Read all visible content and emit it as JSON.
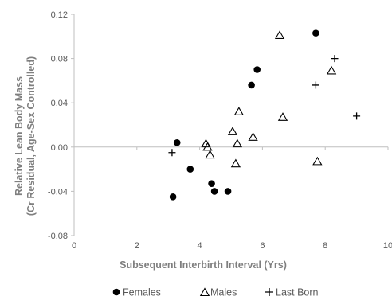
{
  "chart_data": {
    "type": "scatter",
    "xlabel": "Subsequent Interbirth Interval (Yrs)",
    "ylabel_lines": [
      "Relative Lean Body Mass",
      "(Cr Residual, Age-Sex Controlled)"
    ],
    "xlim": [
      0,
      10
    ],
    "ylim": [
      -0.08,
      0.12
    ],
    "x_ticks": [
      0,
      2,
      4,
      6,
      8,
      10
    ],
    "x_tick_labels": [
      "0",
      "2",
      "4",
      "6",
      "8",
      "10"
    ],
    "y_ticks": [
      -0.08,
      -0.04,
      0.0,
      0.04,
      0.08,
      0.12
    ],
    "y_tick_labels": [
      "-0.08",
      "-0.04",
      "0.00",
      "0.04",
      "0.08",
      "0.12"
    ],
    "grid": false,
    "legend_position": "bottom",
    "series": [
      {
        "name": "Females",
        "marker": "filled-circle",
        "color": "#000000",
        "points": [
          [
            3.15,
            -0.045
          ],
          [
            3.28,
            0.004
          ],
          [
            3.7,
            -0.02
          ],
          [
            4.38,
            -0.033
          ],
          [
            4.47,
            -0.04
          ],
          [
            4.9,
            -0.04
          ],
          [
            5.65,
            0.056
          ],
          [
            5.83,
            0.07
          ],
          [
            7.7,
            0.103
          ]
        ]
      },
      {
        "name": "Males",
        "marker": "open-triangle",
        "color": "#000000",
        "points": [
          [
            4.2,
            0.003
          ],
          [
            4.25,
            0.0
          ],
          [
            4.33,
            -0.007
          ],
          [
            5.05,
            0.014
          ],
          [
            5.15,
            -0.015
          ],
          [
            5.2,
            0.003
          ],
          [
            5.25,
            0.032
          ],
          [
            5.7,
            0.009
          ],
          [
            6.55,
            0.101
          ],
          [
            6.65,
            0.027
          ],
          [
            7.75,
            -0.013
          ],
          [
            8.2,
            0.069
          ]
        ]
      },
      {
        "name": "Last Born",
        "marker": "plus",
        "color": "#000000",
        "points": [
          [
            3.12,
            -0.005
          ],
          [
            7.7,
            0.056
          ],
          [
            8.3,
            0.08
          ],
          [
            9.0,
            0.028
          ]
        ]
      }
    ]
  },
  "colors": {
    "axis": "#bfbfbf",
    "tick_text": "#595959",
    "axis_title": "#7f7f7f",
    "marker": "#000000"
  }
}
